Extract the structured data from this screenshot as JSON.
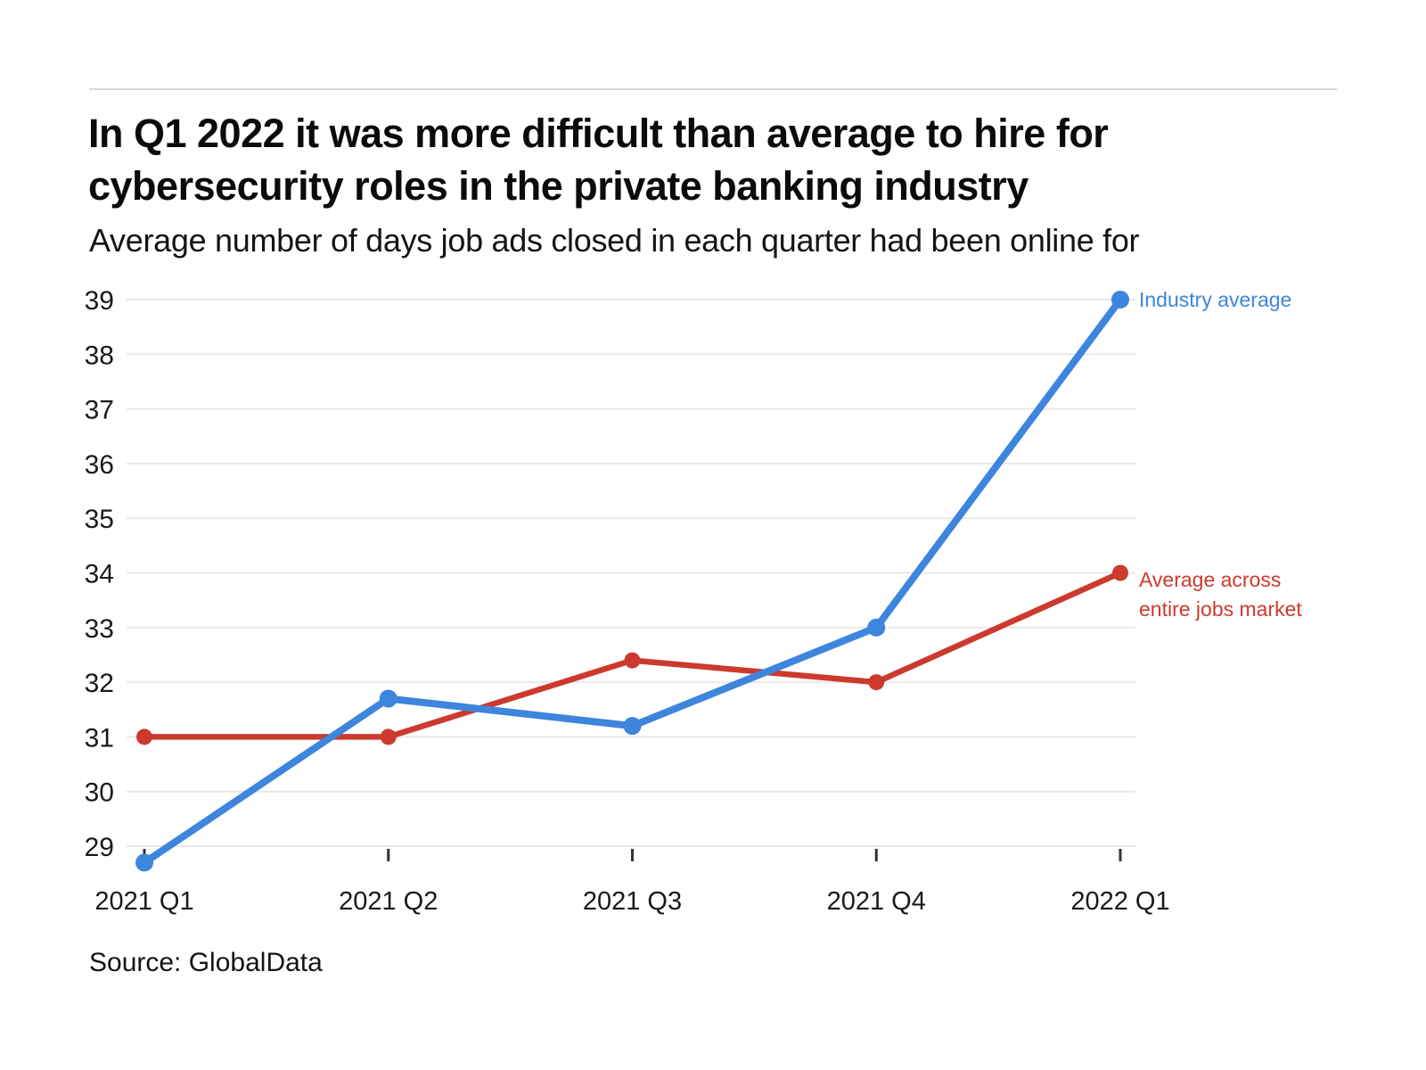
{
  "header": {
    "title_lines": [
      "In Q1 2022 it was more difficult than average to hire for",
      "cybersecurity roles in the private banking industry"
    ],
    "subtitle": "Average number of days job ads closed in each quarter had been online for"
  },
  "footer": {
    "source": "Source: GlobalData"
  },
  "colors": {
    "industry_blue": "#3d85dd",
    "market_red": "#cc3a2e",
    "gridline": "#e9e9e9",
    "tick": "#333333",
    "axis_text": "#1a1a1a",
    "top_rule": "#d9d9d9"
  },
  "chart_data": {
    "type": "line",
    "title": "In Q1 2022 it was more difficult than average to hire for cybersecurity roles in the private banking industry",
    "subtitle": "Average number of days job ads closed in each quarter had been online for",
    "categories": [
      "2021 Q1",
      "2021 Q2",
      "2021 Q3",
      "2021 Q4",
      "2022 Q1"
    ],
    "series": [
      {
        "name": "Industry average",
        "color": "#3d85dd",
        "values": [
          28.7,
          31.7,
          31.2,
          33,
          39
        ],
        "line_width": 8,
        "dot_radius": 10,
        "label_lines": [
          "Industry average"
        ]
      },
      {
        "name": "Average across entire jobs market",
        "color": "#cc3a2e",
        "values": [
          31,
          31,
          32.4,
          32,
          34
        ],
        "line_width": 6.5,
        "dot_radius": 9,
        "label_lines": [
          "Average across",
          "entire jobs market"
        ]
      }
    ],
    "xlabel": "",
    "ylabel": "",
    "y_ticks": [
      29,
      30,
      31,
      32,
      33,
      34,
      35,
      36,
      37,
      38,
      39
    ],
    "ylim": [
      28.6,
      39.4
    ],
    "grid": true,
    "legend_position": "line-end-labels",
    "source": "Source: GlobalData"
  }
}
